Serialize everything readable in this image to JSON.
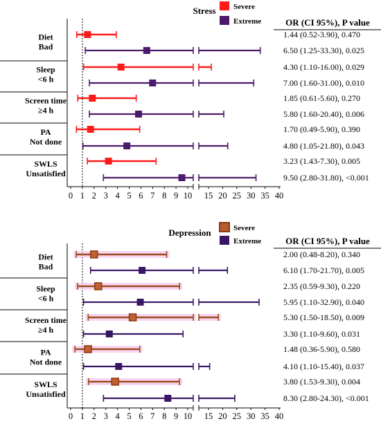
{
  "chart_data": [
    {
      "type": "forest",
      "title": "Stress",
      "legend": [
        {
          "name": "Severe",
          "color": "#ff1a1a"
        },
        {
          "name": "Extreme",
          "color": "#4b1a6b"
        }
      ],
      "table_header": "OR (CI 95%), P value",
      "x_ticks": [
        "0",
        "1",
        "2",
        "3",
        "4",
        "5",
        "6",
        "7",
        "8",
        "9",
        "10",
        "15",
        "20",
        "25",
        "30",
        "35",
        "40"
      ],
      "reference_line": 1,
      "x_axis_break": [
        10,
        11
      ],
      "groups": [
        {
          "label_line1": "Diet",
          "label_line2": "Bad",
          "rows": [
            {
              "series": "Severe",
              "or": 1.44,
              "lo": 0.52,
              "hi": 3.9,
              "text": "1.44 (0.52-3.90), 0.470"
            },
            {
              "series": "Extreme",
              "or": 6.5,
              "lo": 1.25,
              "hi": 33.3,
              "text": "6.50 (1.25-33.30), 0.025"
            }
          ]
        },
        {
          "label_line1": "Sleep",
          "label_line2": "<6 h",
          "rows": [
            {
              "series": "Severe",
              "or": 4.3,
              "lo": 1.1,
              "hi": 16.0,
              "text": "4.30 (1.10-16.00), 0.029"
            },
            {
              "series": "Extreme",
              "or": 7.0,
              "lo": 1.6,
              "hi": 31.0,
              "text": "7.00 (1.60-31.00), 0.010"
            }
          ]
        },
        {
          "label_line1": "Screen time",
          "label_line2": "≥4 h",
          "rows": [
            {
              "series": "Severe",
              "or": 1.85,
              "lo": 0.61,
              "hi": 5.6,
              "text": "1.85 (0.61-5.60), 0.270"
            },
            {
              "series": "Extreme",
              "or": 5.8,
              "lo": 1.6,
              "hi": 20.4,
              "text": "5.80 (1.60-20.40), 0.006"
            }
          ]
        },
        {
          "label_line1": "PA",
          "label_line2": "Not done",
          "rows": [
            {
              "series": "Severe",
              "or": 1.7,
              "lo": 0.49,
              "hi": 5.9,
              "text": "1.70 (0.49-5.90), 0.390"
            },
            {
              "series": "Extreme",
              "or": 4.8,
              "lo": 1.05,
              "hi": 21.8,
              "text": "4.80 (1.05-21.80), 0.043"
            }
          ]
        },
        {
          "label_line1": "SWLS",
          "label_line2": "Unsatisfied",
          "rows": [
            {
              "series": "Severe",
              "or": 3.23,
              "lo": 1.43,
              "hi": 7.3,
              "text": "3.23 (1.43-7.30), 0.005"
            },
            {
              "series": "Extreme",
              "or": 9.5,
              "lo": 2.8,
              "hi": 31.8,
              "text": "9.50 (2.80-31.80), <0.001"
            }
          ]
        }
      ]
    },
    {
      "type": "forest",
      "title": "Depression",
      "legend": [
        {
          "name": "Severe",
          "color": "#9b4a1c"
        },
        {
          "name": "Extreme",
          "color": "#3a1566"
        }
      ],
      "table_header": "OR (CI 95%), P value",
      "x_ticks": [
        "0",
        "1",
        "2",
        "3",
        "4",
        "5",
        "6",
        "7",
        "8",
        "9",
        "10",
        "15",
        "20",
        "25",
        "30",
        "35",
        "40"
      ],
      "reference_line": 1,
      "x_axis_break": [
        10,
        11
      ],
      "groups": [
        {
          "label_line1": "Diet",
          "label_line2": "Bad",
          "rows": [
            {
              "series": "Severe",
              "or": 2.0,
              "lo": 0.48,
              "hi": 8.2,
              "text": "2.00 (0.48-8.20), 0.340"
            },
            {
              "series": "Extreme",
              "or": 6.1,
              "lo": 1.7,
              "hi": 21.7,
              "text": "6.10 (1.70-21.70), 0.005"
            }
          ]
        },
        {
          "label_line1": "Sleep",
          "label_line2": "<6 h",
          "rows": [
            {
              "series": "Severe",
              "or": 2.35,
              "lo": 0.59,
              "hi": 9.3,
              "text": "2.35 (0.59-9.30), 0.220"
            },
            {
              "series": "Extreme",
              "or": 5.95,
              "lo": 1.1,
              "hi": 32.9,
              "text": "5.95 (1.10-32.90), 0.040"
            }
          ]
        },
        {
          "label_line1": "Screen time",
          "label_line2": "≥4 h",
          "rows": [
            {
              "series": "Severe",
              "or": 5.3,
              "lo": 1.5,
              "hi": 18.5,
              "text": "5.30 (1.50-18.50), 0.009"
            },
            {
              "series": "Extreme",
              "or": 3.3,
              "lo": 1.1,
              "hi": 9.6,
              "text": "3.30 (1.10-9.60), 0.031"
            }
          ]
        },
        {
          "label_line1": "PA",
          "label_line2": "Not done",
          "rows": [
            {
              "series": "Severe",
              "or": 1.48,
              "lo": 0.36,
              "hi": 5.9,
              "text": "1.48 (0.36-5.90), 0.580"
            },
            {
              "series": "Extreme",
              "or": 4.1,
              "lo": 1.1,
              "hi": 15.4,
              "text": "4.10 (1.10-15.40), 0.037"
            }
          ]
        },
        {
          "label_line1": "SWLS",
          "label_line2": "Unsatisfied",
          "rows": [
            {
              "series": "Severe",
              "or": 3.8,
              "lo": 1.53,
              "hi": 9.3,
              "text": "3.80 (1.53-9.30), 0.004"
            },
            {
              "series": "Extreme",
              "or": 8.3,
              "lo": 2.8,
              "hi": 24.3,
              "text": "8.30 (2.80-24.30), <0.001"
            }
          ]
        }
      ]
    }
  ]
}
